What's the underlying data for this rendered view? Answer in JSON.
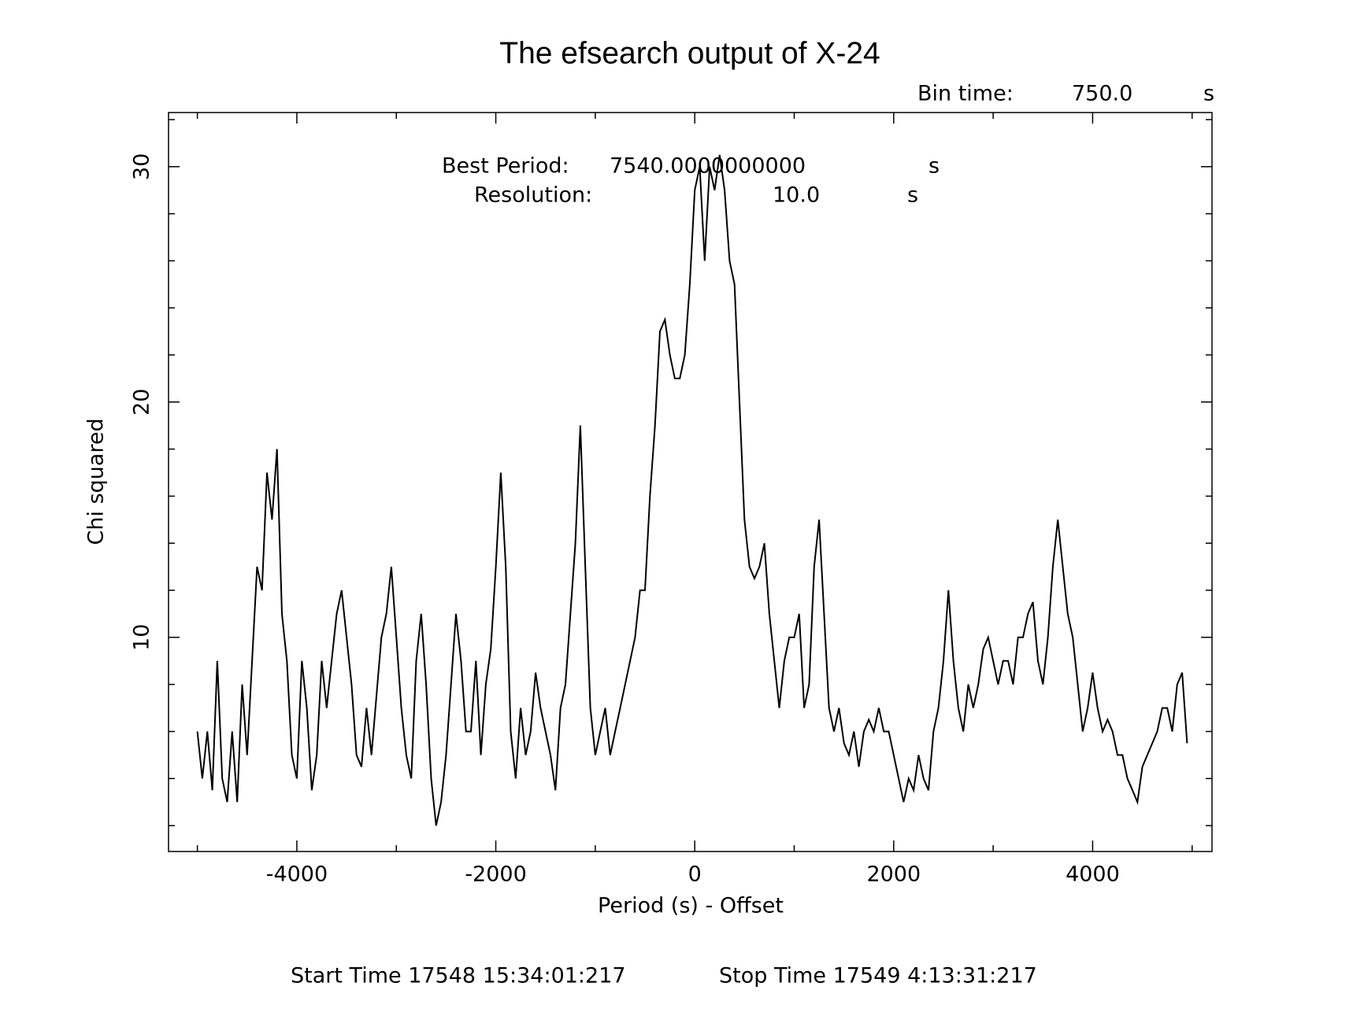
{
  "chart_data": {
    "type": "line",
    "title": "The efsearch output of X-24",
    "bin_time_label": "Bin time:",
    "bin_time": "750.0",
    "bin_time_unit": "s",
    "best_period_label": "Best Period:",
    "best_period": "7540.0000000000",
    "best_period_unit": "s",
    "resolution_label": "Resolution:",
    "resolution": "10.0",
    "resolution_unit": "s",
    "xlabel": "Period (s) - Offset",
    "ylabel": "Chi squared",
    "start_time": "Start Time 17548 15:34:01:217",
    "stop_time": "Stop Time 17549  4:13:31:217",
    "xlim": [
      -5290,
      5200
    ],
    "ylim": [
      0.9,
      32.3
    ],
    "xticks": [
      -4000,
      -2000,
      0,
      2000,
      4000
    ],
    "yticks": [
      10,
      20,
      30
    ],
    "xminorticks": [
      -5000,
      -3000,
      -1000,
      1000,
      3000,
      5000
    ],
    "yminorticks": [
      2,
      4,
      6,
      8,
      12,
      14,
      16,
      18,
      22,
      24,
      26,
      28,
      32
    ],
    "color": "#000000",
    "x": [
      -5000,
      -4950,
      -4900,
      -4850,
      -4800,
      -4750,
      -4700,
      -4650,
      -4600,
      -4550,
      -4500,
      -4450,
      -4400,
      -4350,
      -4300,
      -4250,
      -4200,
      -4150,
      -4100,
      -4050,
      -4000,
      -3950,
      -3900,
      -3850,
      -3800,
      -3750,
      -3700,
      -3650,
      -3600,
      -3550,
      -3500,
      -3450,
      -3400,
      -3350,
      -3300,
      -3250,
      -3200,
      -3150,
      -3100,
      -3050,
      -3000,
      -2950,
      -2900,
      -2850,
      -2800,
      -2750,
      -2700,
      -2650,
      -2600,
      -2550,
      -2500,
      -2450,
      -2400,
      -2350,
      -2300,
      -2250,
      -2200,
      -2150,
      -2100,
      -2050,
      -2000,
      -1950,
      -1900,
      -1850,
      -1800,
      -1750,
      -1700,
      -1650,
      -1600,
      -1550,
      -1500,
      -1450,
      -1400,
      -1350,
      -1300,
      -1250,
      -1200,
      -1150,
      -1100,
      -1050,
      -1000,
      -950,
      -900,
      -850,
      -800,
      -750,
      -700,
      -650,
      -600,
      -550,
      -500,
      -450,
      -400,
      -350,
      -300,
      -250,
      -200,
      -150,
      -100,
      -50,
      0,
      50,
      100,
      150,
      200,
      250,
      300,
      350,
      400,
      450,
      500,
      550,
      600,
      650,
      700,
      750,
      800,
      850,
      900,
      950,
      1000,
      1050,
      1100,
      1150,
      1200,
      1250,
      1300,
      1350,
      1400,
      1450,
      1500,
      1550,
      1600,
      1650,
      1700,
      1750,
      1800,
      1850,
      1900,
      1950,
      2000,
      2050,
      2100,
      2150,
      2200,
      2250,
      2300,
      2350,
      2400,
      2450,
      2500,
      2550,
      2600,
      2650,
      2700,
      2750,
      2800,
      2850,
      2900,
      2950,
      3000,
      3050,
      3100,
      3150,
      3200,
      3250,
      3300,
      3350,
      3400,
      3450,
      3500,
      3550,
      3600,
      3650,
      3700,
      3750,
      3800,
      3850,
      3900,
      3950,
      4000,
      4050,
      4100,
      4150,
      4200,
      4250,
      4300,
      4350,
      4400,
      4450,
      4500,
      4550,
      4600,
      4650,
      4700,
      4750,
      4800,
      4850,
      4900,
      4950
    ],
    "values": [
      6,
      4,
      6,
      3.5,
      9,
      4,
      3,
      6,
      3,
      8,
      5,
      9,
      13,
      12,
      17,
      15,
      18,
      11,
      9,
      5,
      4,
      9,
      7,
      3.5,
      5,
      9,
      7,
      9,
      11,
      12,
      10,
      8,
      5,
      4.5,
      7,
      5,
      7.5,
      10,
      11,
      13,
      10,
      7,
      5,
      4,
      9,
      11,
      8,
      4,
      2,
      3,
      5,
      8,
      11,
      9,
      6,
      6,
      9,
      5,
      8,
      9.5,
      13,
      17,
      13,
      6,
      4,
      7,
      5,
      6,
      8.5,
      7,
      6,
      5,
      3.5,
      7,
      8,
      11,
      14,
      19,
      13,
      7,
      5,
      6,
      7,
      5,
      6,
      7,
      8,
      9,
      10,
      12,
      12,
      16,
      19,
      23,
      23.5,
      22,
      21,
      21,
      22,
      25,
      29,
      30,
      26,
      30,
      29,
      30.5,
      29,
      26,
      25,
      20,
      15,
      13,
      12.5,
      13,
      14,
      11,
      9,
      7,
      9,
      10,
      10,
      11,
      7,
      8,
      13,
      15,
      11,
      7,
      6,
      7,
      5.5,
      5,
      6,
      4.5,
      6,
      6.5,
      6,
      7,
      6,
      6,
      5,
      4,
      3,
      4,
      3.5,
      5,
      4,
      3.5,
      6,
      7,
      9,
      12,
      9,
      7,
      6,
      8,
      7,
      8,
      9.5,
      10,
      9,
      8,
      9,
      9,
      8,
      10,
      10,
      11,
      11.5,
      9,
      8,
      10,
      13,
      15,
      13,
      11,
      10,
      8,
      6,
      7,
      8.5,
      7,
      6,
      6.5,
      6,
      5,
      5,
      4,
      3.5,
      3,
      4.5,
      5,
      5.5,
      6,
      7,
      7,
      6,
      8,
      8.5,
      5.5
    ]
  }
}
